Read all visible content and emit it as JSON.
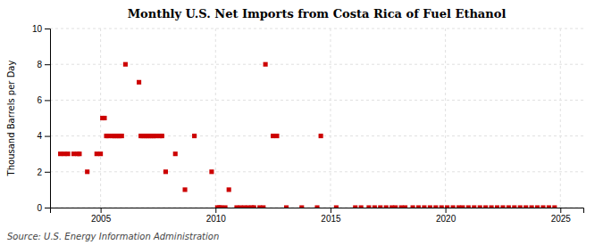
{
  "chart_data": {
    "type": "scatter",
    "title": "Monthly U.S. Net Imports from Costa Rica of Fuel Ethanol",
    "ylabel": "Thousand Barrels per Day",
    "annotations": [
      "Source: U.S. Energy Information Administration"
    ],
    "color": "#cc0000",
    "marker": "square",
    "grid": true,
    "xlim": [
      2002.8,
      2026
    ],
    "ylim": [
      0,
      10
    ],
    "xticks": [
      2005,
      2010,
      2015,
      2020,
      2025
    ],
    "yticks": [
      0,
      2,
      4,
      6,
      8,
      10
    ],
    "x": [
      2003.25,
      2003.42,
      2003.58,
      2003.83,
      2004.0,
      2004.08,
      2004.42,
      2005.08,
      2005.17,
      2005.25,
      2005.33,
      2005.5,
      2005.58,
      2005.67,
      2005.75,
      2005.83,
      2005.92,
      2004.83,
      2005.0,
      2006.08,
      2006.67,
      2006.75,
      2006.83,
      2006.92,
      2007.0,
      2007.08,
      2007.17,
      2007.25,
      2007.33,
      2007.42,
      2007.58,
      2007.67,
      2007.83,
      2008.25,
      2008.67,
      2009.08,
      2009.83,
      2010.08,
      2010.17,
      2010.25,
      2010.42,
      2010.58,
      2010.92,
      2011.08,
      2011.25,
      2011.42,
      2011.58,
      2011.67,
      2012.17,
      2011.92,
      2012.08,
      2012.5,
      2012.67,
      2013.08,
      2013.75,
      2014.42,
      2014.58,
      2015.25,
      2016.08,
      2016.33,
      2016.67,
      2016.92,
      2017.17,
      2017.42,
      2017.67,
      2017.83,
      2018.08,
      2018.25,
      2018.58,
      2018.83,
      2019.08,
      2019.33,
      2019.58,
      2019.83,
      2020.08,
      2020.33,
      2020.58,
      2020.75,
      2021.0,
      2021.25,
      2021.5,
      2021.75,
      2022.0,
      2022.25,
      2022.5,
      2022.75,
      2023.0,
      2023.25,
      2023.5,
      2023.75,
      2024.0,
      2024.25,
      2024.5,
      2024.75
    ],
    "values": [
      3,
      3,
      3,
      3,
      3,
      3,
      2,
      5,
      5,
      4,
      4,
      4,
      4,
      4,
      4,
      4,
      4,
      3,
      3,
      8,
      7,
      4,
      4,
      4,
      4,
      4,
      4,
      4,
      4,
      4,
      4,
      4,
      2,
      3,
      1,
      4,
      2,
      0,
      0,
      0,
      0,
      1,
      0,
      0,
      0,
      0,
      0,
      0,
      8,
      0,
      0,
      4,
      4,
      0,
      0,
      0,
      4,
      0,
      0,
      0,
      0,
      0,
      0,
      0,
      0,
      0,
      0,
      0,
      0,
      0,
      0,
      0,
      0,
      0,
      0,
      0,
      0,
      0,
      0,
      0,
      0,
      0,
      0,
      0,
      0,
      0,
      0,
      0,
      0,
      0,
      0,
      0,
      0,
      0
    ]
  }
}
